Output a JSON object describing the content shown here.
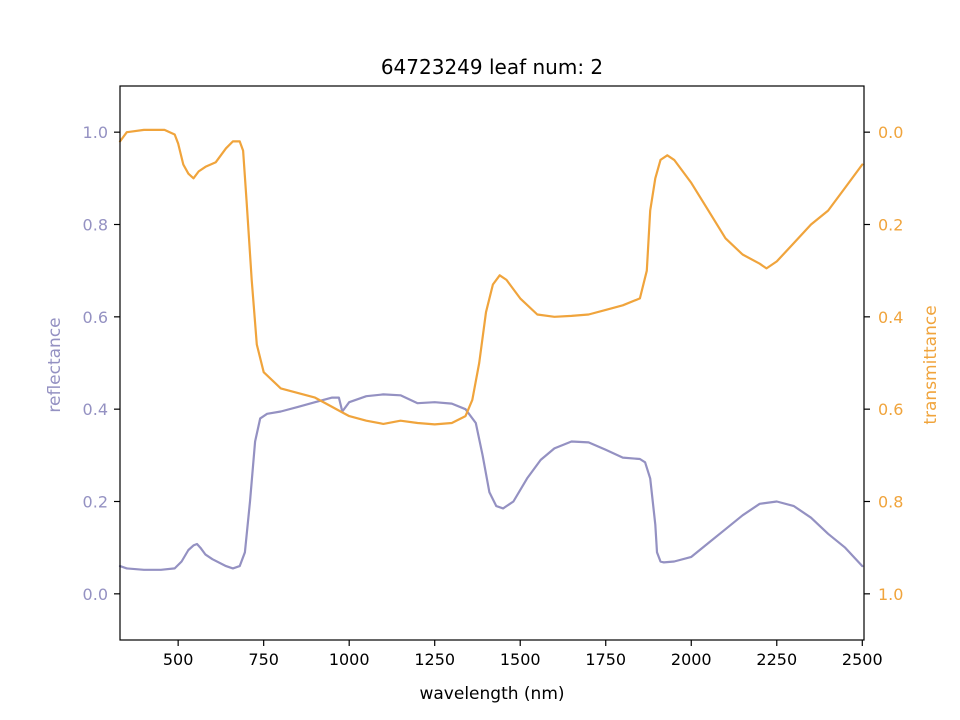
{
  "chart_data": {
    "type": "line",
    "title": "64723249 leaf num: 2",
    "xlabel": "wavelength (nm)",
    "ylabel": "reflectance",
    "y2label": "transmittance",
    "xlim": [
      330,
      2505
    ],
    "ylim": [
      -0.1,
      1.1
    ],
    "y2lim": [
      1.1,
      -0.1
    ],
    "y2_inverted": true,
    "x_ticks": [
      500,
      750,
      1000,
      1250,
      1500,
      1750,
      2000,
      2250,
      2500
    ],
    "y_ticks": [
      0.0,
      0.2,
      0.4,
      0.6,
      0.8,
      1.0
    ],
    "y2_ticks": [
      0.0,
      0.2,
      0.4,
      0.6,
      0.8,
      1.0
    ],
    "grid": false,
    "legend": "none",
    "colors": {
      "reflectance": "#9491c2",
      "transmittance": "#f0a43c",
      "axes": "#000000"
    },
    "series": [
      {
        "axis": "left",
        "x": [
          330,
          350,
          400,
          450,
          490,
          510,
          530,
          545,
          555,
          565,
          580,
          600,
          640,
          660,
          680,
          695,
          710,
          725,
          740,
          760,
          800,
          850,
          900,
          950,
          970,
          980,
          1000,
          1050,
          1100,
          1150,
          1200,
          1250,
          1300,
          1340,
          1370,
          1390,
          1410,
          1430,
          1450,
          1480,
          1520,
          1560,
          1600,
          1650,
          1700,
          1750,
          1800,
          1850,
          1865,
          1880,
          1895,
          1900,
          1910,
          1920,
          1950,
          2000,
          2050,
          2100,
          2150,
          2200,
          2250,
          2300,
          2350,
          2400,
          2450,
          2500
        ],
        "values": [
          0.06,
          0.055,
          0.052,
          0.052,
          0.055,
          0.07,
          0.095,
          0.105,
          0.108,
          0.1,
          0.085,
          0.075,
          0.06,
          0.055,
          0.06,
          0.09,
          0.2,
          0.33,
          0.38,
          0.39,
          0.395,
          0.405,
          0.415,
          0.425,
          0.425,
          0.395,
          0.415,
          0.428,
          0.432,
          0.43,
          0.413,
          0.415,
          0.412,
          0.4,
          0.37,
          0.3,
          0.22,
          0.19,
          0.185,
          0.2,
          0.25,
          0.29,
          0.315,
          0.33,
          0.328,
          0.312,
          0.295,
          0.292,
          0.285,
          0.25,
          0.15,
          0.09,
          0.07,
          0.068,
          0.07,
          0.08,
          0.11,
          0.14,
          0.17,
          0.195,
          0.2,
          0.19,
          0.165,
          0.13,
          0.1,
          0.06
        ]
      },
      {
        "axis": "right",
        "x": [
          330,
          350,
          400,
          460,
          490,
          500,
          515,
          530,
          545,
          560,
          580,
          610,
          640,
          660,
          680,
          690,
          700,
          715,
          730,
          750,
          800,
          900,
          950,
          975,
          1000,
          1050,
          1100,
          1150,
          1200,
          1250,
          1300,
          1340,
          1360,
          1380,
          1400,
          1420,
          1440,
          1460,
          1500,
          1550,
          1600,
          1650,
          1700,
          1750,
          1800,
          1850,
          1870,
          1880,
          1895,
          1910,
          1930,
          1950,
          2000,
          2050,
          2100,
          2150,
          2200,
          2220,
          2250,
          2300,
          2350,
          2400,
          2450,
          2500
        ],
        "values": [
          0.02,
          0.0,
          -0.005,
          -0.005,
          0.005,
          0.025,
          0.07,
          0.09,
          0.1,
          0.085,
          0.075,
          0.065,
          0.035,
          0.02,
          0.02,
          0.04,
          0.15,
          0.32,
          0.46,
          0.52,
          0.555,
          0.575,
          0.595,
          0.605,
          0.615,
          0.625,
          0.632,
          0.625,
          0.63,
          0.633,
          0.63,
          0.615,
          0.58,
          0.5,
          0.39,
          0.33,
          0.31,
          0.32,
          0.36,
          0.395,
          0.4,
          0.398,
          0.395,
          0.385,
          0.375,
          0.36,
          0.3,
          0.17,
          0.1,
          0.06,
          0.05,
          0.06,
          0.11,
          0.17,
          0.23,
          0.265,
          0.285,
          0.295,
          0.28,
          0.24,
          0.2,
          0.17,
          0.12,
          0.07
        ]
      }
    ]
  }
}
